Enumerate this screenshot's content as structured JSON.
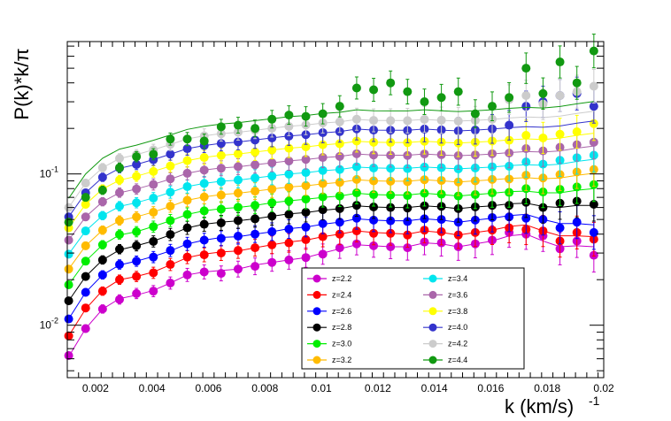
{
  "chart_data": {
    "type": "scatter",
    "xlabel": "k  (km/s)",
    "xlabel_sup": "-1",
    "ylabel": "P(k)*k/π",
    "xlim": [
      0.001,
      0.02
    ],
    "ylim": [
      0.0045,
      0.75
    ],
    "yscale": "log",
    "x_ticks": [
      "0.002",
      "0.004",
      "0.006",
      "0.008",
      "0.01",
      "0.012",
      "0.014",
      "0.016",
      "0.018",
      "0.02"
    ],
    "x_tick_values": [
      0.002,
      0.004,
      0.006,
      0.008,
      0.01,
      0.012,
      0.014,
      0.016,
      0.018,
      0.02
    ],
    "y_ticks": [
      {
        "value": 0.01,
        "base": "10",
        "exp": "-2"
      },
      {
        "value": 0.1,
        "base": "10",
        "exp": "-1"
      }
    ],
    "legend_position": "bottom-right",
    "k": [
      0.00105,
      0.00165,
      0.00225,
      0.00285,
      0.00345,
      0.00405,
      0.00465,
      0.00525,
      0.00585,
      0.00645,
      0.00705,
      0.00765,
      0.00825,
      0.00885,
      0.00945,
      0.01005,
      0.01065,
      0.01125,
      0.01185,
      0.01245,
      0.01305,
      0.01365,
      0.01425,
      0.01485,
      0.01545,
      0.01605,
      0.01665,
      0.01725,
      0.01785,
      0.01845,
      0.01905,
      0.01965
    ],
    "series": [
      {
        "name": "z=2.2",
        "color": "#cc00cc",
        "base": [
          0.0062,
          0.0095,
          0.0128,
          0.015,
          0.0158,
          0.017,
          0.019,
          0.0215,
          0.0225,
          0.023,
          0.0235,
          0.025,
          0.026,
          0.027,
          0.028,
          0.03,
          0.032,
          0.034,
          0.0335,
          0.033,
          0.033,
          0.035,
          0.0345,
          0.033,
          0.0345,
          0.036,
          0.039,
          0.04,
          0.036,
          0.033,
          0.0335,
          0.033
        ],
        "points": [
          0.0063,
          0.0095,
          0.0128,
          0.0148,
          0.0162,
          0.0168,
          0.019,
          0.0215,
          0.0225,
          0.022,
          0.0235,
          0.0245,
          0.026,
          0.027,
          0.028,
          0.0295,
          0.0325,
          0.0345,
          0.0335,
          0.033,
          0.0325,
          0.0355,
          0.035,
          0.033,
          0.0345,
          0.0365,
          0.041,
          0.04,
          0.039,
          0.032,
          0.036,
          0.029
        ]
      },
      {
        "name": "z=2.4",
        "color": "#ff0000",
        "base": [
          0.0085,
          0.0128,
          0.017,
          0.02,
          0.021,
          0.0225,
          0.025,
          0.028,
          0.0295,
          0.0305,
          0.031,
          0.0325,
          0.034,
          0.0355,
          0.0365,
          0.0385,
          0.04,
          0.042,
          0.041,
          0.0405,
          0.04,
          0.042,
          0.041,
          0.0395,
          0.041,
          0.0425,
          0.045,
          0.046,
          0.042,
          0.039,
          0.039,
          0.0385
        ],
        "points": [
          0.0085,
          0.013,
          0.0168,
          0.02,
          0.021,
          0.0222,
          0.0252,
          0.0282,
          0.0292,
          0.03,
          0.0312,
          0.0325,
          0.034,
          0.035,
          0.0368,
          0.0385,
          0.04,
          0.042,
          0.0405,
          0.0405,
          0.0395,
          0.0425,
          0.0415,
          0.0395,
          0.041,
          0.0425,
          0.044,
          0.043,
          0.042,
          0.036,
          0.041,
          0.037
        ]
      },
      {
        "name": "z=2.6",
        "color": "#0000ff",
        "base": [
          0.011,
          0.0165,
          0.0215,
          0.025,
          0.0265,
          0.0285,
          0.031,
          0.0345,
          0.0365,
          0.038,
          0.0385,
          0.04,
          0.0415,
          0.0435,
          0.0445,
          0.0465,
          0.048,
          0.0505,
          0.0495,
          0.049,
          0.049,
          0.0505,
          0.0495,
          0.048,
          0.0495,
          0.051,
          0.053,
          0.054,
          0.05,
          0.047,
          0.047,
          0.046
        ],
        "points": [
          0.011,
          0.0165,
          0.0215,
          0.0252,
          0.0265,
          0.0282,
          0.0312,
          0.0345,
          0.0365,
          0.0375,
          0.0388,
          0.04,
          0.0415,
          0.0432,
          0.0445,
          0.047,
          0.048,
          0.051,
          0.0495,
          0.049,
          0.0485,
          0.0505,
          0.05,
          0.048,
          0.0495,
          0.0515,
          0.052,
          0.051,
          0.05,
          0.044,
          0.048,
          0.041
        ]
      },
      {
        "name": "z=2.8",
        "color": "#000000",
        "base": [
          0.0145,
          0.021,
          0.027,
          0.0315,
          0.0335,
          0.036,
          0.0395,
          0.044,
          0.0465,
          0.048,
          0.049,
          0.0505,
          0.0525,
          0.0545,
          0.0555,
          0.0575,
          0.059,
          0.0615,
          0.0605,
          0.06,
          0.06,
          0.0615,
          0.0605,
          0.059,
          0.0605,
          0.0615,
          0.0635,
          0.064,
          0.061,
          0.06,
          0.062,
          0.062
        ],
        "points": [
          0.0145,
          0.021,
          0.027,
          0.0318,
          0.0335,
          0.0358,
          0.0398,
          0.044,
          0.0465,
          0.0475,
          0.0492,
          0.0505,
          0.0525,
          0.054,
          0.0558,
          0.058,
          0.059,
          0.062,
          0.0605,
          0.06,
          0.0595,
          0.0615,
          0.061,
          0.059,
          0.0605,
          0.062,
          0.062,
          0.065,
          0.06,
          0.064,
          0.066,
          0.063
        ]
      },
      {
        "name": "z=3.0",
        "color": "#00ee00",
        "base": [
          0.0185,
          0.0265,
          0.034,
          0.0395,
          0.0415,
          0.045,
          0.049,
          0.054,
          0.057,
          0.059,
          0.06,
          0.062,
          0.0645,
          0.0665,
          0.068,
          0.07,
          0.0715,
          0.0745,
          0.073,
          0.0725,
          0.0725,
          0.0745,
          0.073,
          0.0715,
          0.073,
          0.0745,
          0.0765,
          0.077,
          0.075,
          0.075,
          0.078,
          0.08
        ],
        "points": [
          0.0185,
          0.0265,
          0.034,
          0.0398,
          0.0415,
          0.0448,
          0.0492,
          0.054,
          0.057,
          0.0585,
          0.0602,
          0.062,
          0.0645,
          0.0662,
          0.0682,
          0.0705,
          0.0715,
          0.075,
          0.073,
          0.0725,
          0.072,
          0.0745,
          0.0735,
          0.0715,
          0.073,
          0.075,
          0.0755,
          0.08,
          0.076,
          0.079,
          0.082,
          0.085
        ]
      },
      {
        "name": "z=3.2",
        "color": "#ffbb00",
        "base": [
          0.0235,
          0.0335,
          0.0425,
          0.049,
          0.052,
          0.056,
          0.061,
          0.067,
          0.0705,
          0.073,
          0.0745,
          0.077,
          0.0795,
          0.082,
          0.0835,
          0.086,
          0.088,
          0.0915,
          0.09,
          0.0895,
          0.0895,
          0.0915,
          0.09,
          0.0885,
          0.09,
          0.0915,
          0.0935,
          0.0945,
          0.093,
          0.094,
          0.098,
          0.101
        ],
        "points": [
          0.0235,
          0.0335,
          0.0425,
          0.0492,
          0.052,
          0.0558,
          0.0612,
          0.067,
          0.0705,
          0.0725,
          0.0748,
          0.077,
          0.0795,
          0.0818,
          0.0838,
          0.0865,
          0.088,
          0.092,
          0.09,
          0.0895,
          0.089,
          0.0915,
          0.0905,
          0.0885,
          0.09,
          0.092,
          0.0925,
          0.098,
          0.094,
          0.099,
          0.103,
          0.107
        ]
      },
      {
        "name": "z=3.4",
        "color": "#00e5ee",
        "base": [
          0.0295,
          0.042,
          0.053,
          0.061,
          0.0645,
          0.0695,
          0.0755,
          0.0825,
          0.0865,
          0.0895,
          0.091,
          0.094,
          0.097,
          0.1,
          0.102,
          0.105,
          0.107,
          0.111,
          0.1095,
          0.109,
          0.109,
          0.111,
          0.1095,
          0.108,
          0.1095,
          0.111,
          0.1135,
          0.115,
          0.114,
          0.116,
          0.121,
          0.125
        ],
        "points": [
          0.0295,
          0.042,
          0.053,
          0.0612,
          0.0645,
          0.0692,
          0.0758,
          0.0825,
          0.0865,
          0.089,
          0.0912,
          0.094,
          0.097,
          0.0998,
          0.1022,
          0.1055,
          0.107,
          0.1115,
          0.1095,
          0.109,
          0.1085,
          0.111,
          0.11,
          0.108,
          0.1095,
          0.1115,
          0.1125,
          0.12,
          0.116,
          0.123,
          0.128,
          0.133
        ]
      },
      {
        "name": "z=3.6",
        "color": "#aa66aa",
        "base": [
          0.0365,
          0.052,
          0.0655,
          0.075,
          0.0795,
          0.0855,
          0.0925,
          0.101,
          0.106,
          0.1095,
          0.1115,
          0.115,
          0.1185,
          0.122,
          0.1245,
          0.128,
          0.1305,
          0.1355,
          0.1335,
          0.133,
          0.133,
          0.1355,
          0.1335,
          0.132,
          0.1335,
          0.1355,
          0.1385,
          0.1405,
          0.1395,
          0.142,
          0.148,
          0.153
        ],
        "points": [
          0.0365,
          0.052,
          0.0655,
          0.0752,
          0.0795,
          0.0852,
          0.0928,
          0.101,
          0.106,
          0.109,
          0.1118,
          0.115,
          0.1185,
          0.1218,
          0.1248,
          0.1285,
          0.1305,
          0.136,
          0.1335,
          0.133,
          0.1325,
          0.1355,
          0.134,
          0.132,
          0.1335,
          0.136,
          0.1375,
          0.147,
          0.142,
          0.15,
          0.156,
          0.162
        ]
      },
      {
        "name": "z=3.8",
        "color": "#ffff00",
        "base": [
          0.044,
          0.063,
          0.0795,
          0.091,
          0.0965,
          0.104,
          0.1125,
          0.1225,
          0.1285,
          0.133,
          0.1355,
          0.1395,
          0.144,
          0.148,
          0.151,
          0.1555,
          0.1585,
          0.1645,
          0.162,
          0.1615,
          0.1615,
          0.1645,
          0.162,
          0.16,
          0.162,
          0.1645,
          0.168,
          0.1705,
          0.169,
          0.1725,
          0.18,
          0.186
        ],
        "points": [
          0.044,
          0.063,
          0.0795,
          0.0912,
          0.0965,
          0.1038,
          0.1128,
          0.1225,
          0.1285,
          0.1325,
          0.1358,
          0.1395,
          0.144,
          0.1478,
          0.1512,
          0.156,
          0.1585,
          0.165,
          0.162,
          0.1615,
          0.161,
          0.1645,
          0.1625,
          0.16,
          0.162,
          0.165,
          0.167,
          0.18,
          0.173,
          0.183,
          0.19,
          0.215
        ]
      },
      {
        "name": "z=4.0",
        "color": "#3333cc",
        "base": [
          0.052,
          0.075,
          0.095,
          0.109,
          0.1155,
          0.1245,
          0.135,
          0.147,
          0.154,
          0.1595,
          0.1625,
          0.1675,
          0.173,
          0.178,
          0.1815,
          0.187,
          0.1905,
          0.198,
          0.195,
          0.1945,
          0.1945,
          0.198,
          0.195,
          0.1925,
          0.195,
          0.198,
          0.202,
          0.205,
          0.2035,
          0.2075,
          0.2165,
          0.224
        ],
        "points": [
          0.052,
          0.075,
          0.095,
          0.1092,
          0.1155,
          0.1242,
          0.1352,
          0.147,
          0.154,
          0.159,
          0.1628,
          0.1675,
          0.173,
          0.1778,
          0.1818,
          0.1875,
          0.1905,
          0.1985,
          0.195,
          0.1945,
          0.194,
          0.198,
          0.1955,
          0.1925,
          0.195,
          0.1985,
          0.21,
          0.28,
          0.3,
          0.33,
          0.34,
          0.28
        ]
      },
      {
        "name": "z=4.2",
        "color": "#cccccc",
        "base": [
          0.06,
          0.087,
          0.11,
          0.1265,
          0.134,
          0.1445,
          0.1565,
          0.1705,
          0.1785,
          0.185,
          0.1885,
          0.1945,
          0.2005,
          0.2065,
          0.2105,
          0.217,
          0.221,
          0.2295,
          0.226,
          0.2255,
          0.2255,
          0.2295,
          0.226,
          0.2235,
          0.226,
          0.2295,
          0.2345,
          0.238,
          0.236,
          0.241,
          0.251,
          0.26
        ],
        "points": [
          0.06,
          0.087,
          0.11,
          0.1268,
          0.134,
          0.1442,
          0.1568,
          0.1705,
          0.1785,
          0.1845,
          0.1888,
          0.1945,
          0.2005,
          0.2062,
          0.2108,
          0.2175,
          0.221,
          0.23,
          0.226,
          0.225,
          0.225,
          0.2295,
          0.2265,
          0.2235,
          0.226,
          0.23,
          0.31,
          0.33,
          0.29,
          0.33,
          0.35,
          0.38
        ]
      },
      {
        "name": "z=4.4",
        "color": "#119911",
        "base": [
          0.069,
          0.1,
          0.127,
          0.146,
          0.155,
          0.167,
          0.181,
          0.197,
          0.2065,
          0.214,
          0.218,
          0.225,
          0.232,
          0.239,
          0.2435,
          0.251,
          0.2555,
          0.2655,
          0.2615,
          0.261,
          0.261,
          0.2655,
          0.2615,
          0.2585,
          0.2615,
          0.2655,
          0.2715,
          0.2755,
          0.273,
          0.279,
          0.2905,
          0.301
        ],
        "points": [
          0.048,
          0.07,
          0.078,
          0.11,
          0.13,
          0.135,
          0.17,
          0.17,
          0.165,
          0.205,
          0.21,
          0.2,
          0.23,
          0.245,
          0.24,
          0.25,
          0.28,
          0.37,
          0.36,
          0.4,
          0.35,
          0.3,
          0.32,
          0.35,
          0.25,
          0.28,
          0.32,
          0.5,
          0.34,
          0.55,
          0.4,
          0.65
        ]
      }
    ]
  }
}
